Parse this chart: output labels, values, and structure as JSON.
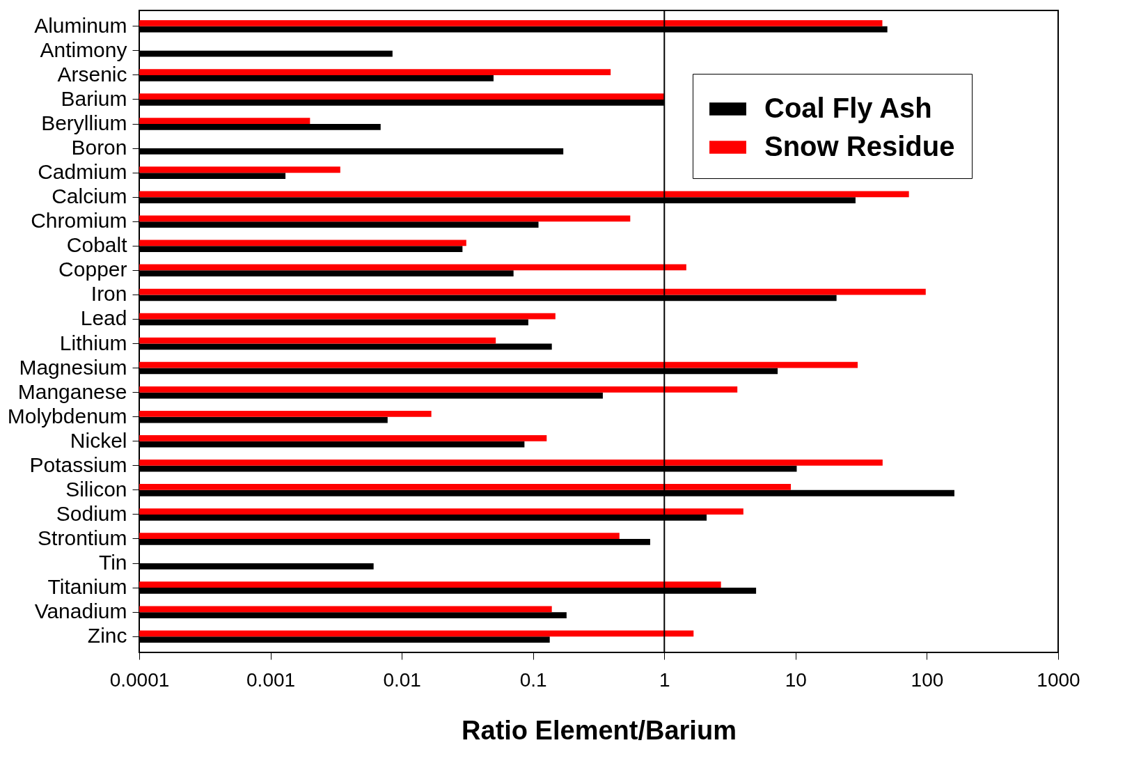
{
  "chart_data": {
    "type": "bar",
    "orientation": "horizontal",
    "log": "x",
    "xlabel": "Ratio Element/Barium",
    "categories": [
      "Aluminum",
      "Antimony",
      "Arsenic",
      "Barium",
      "Beryllium",
      "Boron",
      "Cadmium",
      "Calcium",
      "Chromium",
      "Cobalt",
      "Copper",
      "Iron",
      "Lead",
      "Lithium",
      "Magnesium",
      "Manganese",
      "Molybdenum",
      "Nickel",
      "Potassium",
      "Silicon",
      "Sodium",
      "Strontium",
      "Tin",
      "Titanium",
      "Vanadium",
      "Zinc"
    ],
    "series": [
      {
        "name": "Coal Fly Ash",
        "color": "#000000",
        "values": [
          50,
          0.0085,
          0.05,
          1,
          0.0069,
          0.17,
          0.0013,
          28.6,
          0.11,
          0.029,
          0.071,
          20.5,
          0.092,
          0.139,
          7.3,
          0.34,
          0.0078,
          0.086,
          10.2,
          162,
          2.1,
          0.78,
          0.0061,
          5.0,
          0.18,
          0.134
        ]
      },
      {
        "name": "Snow Residue",
        "color": "#ff0000",
        "values": [
          45.8,
          null,
          0.39,
          1,
          0.002,
          null,
          0.0034,
          73,
          0.55,
          0.031,
          1.47,
          98,
          0.148,
          0.052,
          29.7,
          3.6,
          0.0168,
          0.127,
          46,
          9.2,
          4.0,
          0.455,
          null,
          2.7,
          0.139,
          1.67
        ]
      }
    ],
    "xlim": [
      0.0001,
      1000
    ],
    "xticks": [
      0.0001,
      0.001,
      0.01,
      0.1,
      1,
      10,
      100,
      1000
    ],
    "ref_lines": [
      {
        "axis": "x",
        "value": 1,
        "color": "#000000"
      }
    ],
    "legend": "top right",
    "grid": false
  }
}
